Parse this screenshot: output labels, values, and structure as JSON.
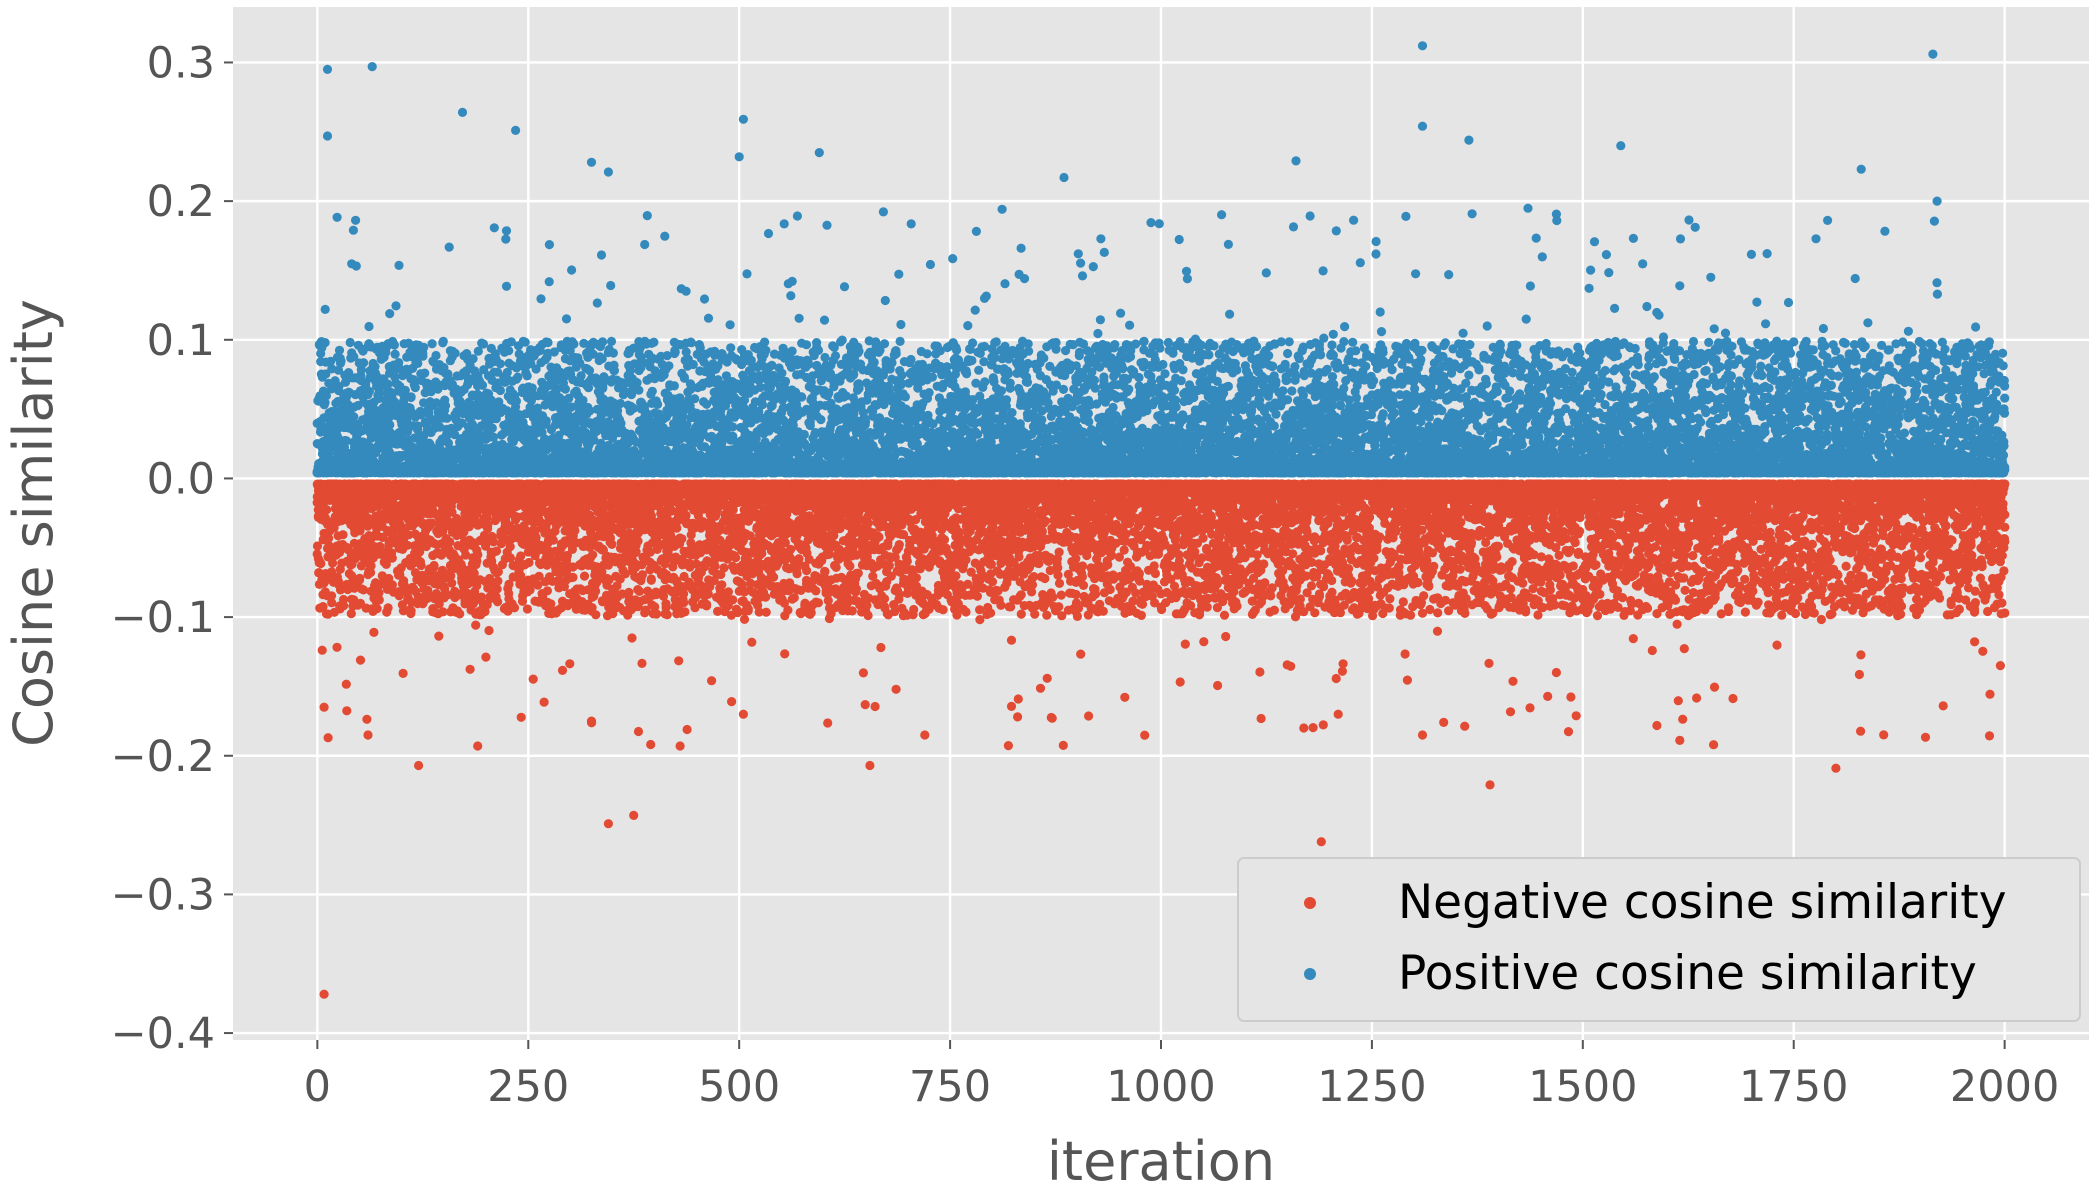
{
  "chart_data": {
    "type": "scatter",
    "title": "",
    "xlabel": "iteration",
    "ylabel": "Cosine similarity",
    "xlim": [
      -100,
      2100
    ],
    "ylim": [
      -0.405,
      0.34
    ],
    "x_ticks": [
      0,
      250,
      500,
      750,
      1000,
      1250,
      1500,
      1750,
      2000
    ],
    "x_tick_labels": [
      "0",
      "250",
      "500",
      "750",
      "1000",
      "1250",
      "1500",
      "1750",
      "2000"
    ],
    "y_ticks": [
      0.3,
      0.2,
      0.1,
      0.0,
      -0.1,
      -0.2,
      -0.3,
      -0.4
    ],
    "y_tick_labels": [
      "0.3",
      "0.2",
      "0.1",
      "0.0",
      "−0.1",
      "−0.2",
      "−0.3",
      "−0.4"
    ],
    "grid": true,
    "legend_position": "bottom-right",
    "iterations": [
      0,
      2000
    ],
    "series": [
      {
        "name": "Negative cosine similarity",
        "color": "#E24A33",
        "sign": -1,
        "dense_band": [
          -0.095,
          -0.005
        ],
        "outliers": [
          {
            "x": 8,
            "y": -0.372
          },
          {
            "x": 8,
            "y": -0.165
          },
          {
            "x": 60,
            "y": -0.185
          },
          {
            "x": 120,
            "y": -0.207
          },
          {
            "x": 190,
            "y": -0.193
          },
          {
            "x": 325,
            "y": -0.175
          },
          {
            "x": 345,
            "y": -0.249
          },
          {
            "x": 375,
            "y": -0.243
          },
          {
            "x": 430,
            "y": -0.193
          },
          {
            "x": 505,
            "y": -0.17
          },
          {
            "x": 655,
            "y": -0.207
          },
          {
            "x": 720,
            "y": -0.185
          },
          {
            "x": 830,
            "y": -0.172
          },
          {
            "x": 1190,
            "y": -0.262
          },
          {
            "x": 1210,
            "y": -0.17
          },
          {
            "x": 1310,
            "y": -0.185
          },
          {
            "x": 1390,
            "y": -0.221
          },
          {
            "x": 1655,
            "y": -0.192
          },
          {
            "x": 1800,
            "y": -0.209
          },
          {
            "x": 1995,
            "y": -0.135
          }
        ]
      },
      {
        "name": "Positive cosine similarity",
        "color": "#348ABD",
        "sign": 1,
        "dense_band": [
          0.005,
          0.095
        ],
        "outliers": [
          {
            "x": 12,
            "y": 0.295
          },
          {
            "x": 12,
            "y": 0.247
          },
          {
            "x": 65,
            "y": 0.297
          },
          {
            "x": 172,
            "y": 0.264
          },
          {
            "x": 235,
            "y": 0.251
          },
          {
            "x": 325,
            "y": 0.228
          },
          {
            "x": 345,
            "y": 0.221
          },
          {
            "x": 500,
            "y": 0.232
          },
          {
            "x": 505,
            "y": 0.259
          },
          {
            "x": 595,
            "y": 0.235
          },
          {
            "x": 885,
            "y": 0.217
          },
          {
            "x": 1160,
            "y": 0.229
          },
          {
            "x": 1310,
            "y": 0.312
          },
          {
            "x": 1310,
            "y": 0.254
          },
          {
            "x": 1365,
            "y": 0.244
          },
          {
            "x": 1545,
            "y": 0.24
          },
          {
            "x": 1830,
            "y": 0.223
          },
          {
            "x": 1915,
            "y": 0.306
          },
          {
            "x": 1920,
            "y": 0.2
          }
        ]
      }
    ]
  }
}
